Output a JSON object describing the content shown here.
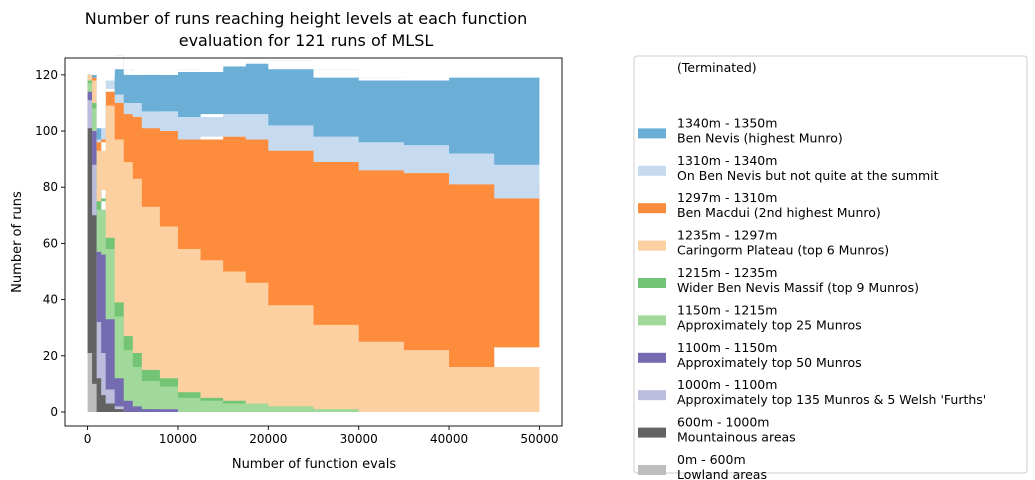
{
  "chart_data": {
    "type": "area",
    "title_lines": [
      "Number of runs reaching height levels at each function",
      "evaluation for 121 runs of MLSL"
    ],
    "xlabel": "Number of function evals",
    "ylabel": "Number of runs",
    "xlim": [
      -2500,
      52500
    ],
    "ylim": [
      -5,
      126
    ],
    "xticks": [
      0,
      10000,
      20000,
      30000,
      40000,
      50000
    ],
    "xtick_labels": [
      "0",
      "10000",
      "20000",
      "30000",
      "40000",
      "50000"
    ],
    "yticks": [
      0,
      20,
      40,
      60,
      80,
      100,
      120
    ],
    "ytick_labels": [
      "0",
      "20",
      "40",
      "60",
      "80",
      "100",
      "120"
    ],
    "grid": false,
    "legend_position": "outside-right",
    "x": [
      0,
      500,
      1000,
      1500,
      2000,
      3000,
      4000,
      5000,
      6000,
      8000,
      10000,
      12500,
      15000,
      17500,
      20000,
      25000,
      30000,
      35000,
      40000,
      45000,
      50000
    ],
    "series": [
      {
        "key": "terminated",
        "name": "(Terminated)",
        "label_lines": [
          "(Terminated)"
        ],
        "color": "#ffffff",
        "values": [
          0,
          0,
          0,
          0,
          0,
          0,
          0,
          0,
          0,
          0,
          0,
          0,
          0,
          0,
          0,
          0,
          0,
          0,
          0,
          0,
          0
        ]
      },
      {
        "key": "s1340",
        "name": "1340m - 1350m",
        "label_lines": [
          "1340m - 1350m",
          "Ben Nevis (highest Munro)"
        ],
        "color": "#6baed6",
        "values": [
          0,
          0,
          2,
          4,
          5,
          7,
          9,
          10,
          11,
          13,
          15,
          16,
          17,
          18,
          19,
          20,
          21,
          22,
          24,
          27,
          31
        ]
      },
      {
        "key": "s1310",
        "name": "1310m - 1340m",
        "label_lines": [
          "1310m - 1340m",
          "On Ben Nevis but not quite at the summit"
        ],
        "color": "#c6dbef",
        "values": [
          0,
          0,
          0,
          1,
          1,
          2,
          3,
          4,
          5,
          6,
          7,
          8,
          8,
          8,
          9,
          9,
          9,
          10,
          10,
          11,
          12
        ]
      },
      {
        "key": "s1297",
        "name": "1297m - 1310m",
        "label_lines": [
          "1297m - 1310m",
          "Ben Macdui (2nd highest Munro)"
        ],
        "color": "#fd8d3c",
        "values": [
          0,
          0,
          1,
          3,
          5,
          9,
          13,
          17,
          22,
          28,
          34,
          39,
          44,
          48,
          51,
          55,
          58,
          61,
          63,
          65,
          53
        ]
      },
      {
        "key": "s1235",
        "name": "1235m - 1297m",
        "label_lines": [
          "1235m - 1297m",
          "Caringorm Plateau (top 6 Munros)"
        ],
        "color": "#fdd0a2",
        "values": [
          0,
          2,
          8,
          18,
          30,
          47,
          58,
          62,
          62,
          58,
          54,
          51,
          49,
          46,
          43,
          36,
          30,
          25,
          22,
          16,
          23
        ]
      },
      {
        "key": "s1215",
        "name": "1215m - 1235m",
        "label_lines": [
          "1215m - 1235m",
          "Wider Ben Nevis Massif (top 9 Munros)"
        ],
        "color": "#74c476",
        "values": [
          0,
          1,
          2,
          3,
          3,
          4,
          5,
          5,
          5,
          4,
          3,
          2,
          1,
          1,
          0,
          0,
          0,
          0,
          0,
          0,
          0
        ]
      },
      {
        "key": "s1150",
        "name": "1150m - 1215m",
        "label_lines": [
          "1150m - 1215m",
          "Approximately top 25 Munros"
        ],
        "color": "#a1d99b",
        "values": [
          0,
          3,
          8,
          15,
          20,
          25,
          22,
          18,
          14,
          10,
          8,
          5,
          4,
          3,
          3,
          2,
          1,
          0,
          0,
          0,
          0
        ]
      },
      {
        "key": "s1100",
        "name": "1100m - 1150m",
        "label_lines": [
          "1100m - 1150m",
          "Approximately top 50 Munros"
        ],
        "color": "#756bb1",
        "values": [
          0,
          3,
          12,
          25,
          35,
          25,
          10,
          4,
          2,
          1,
          1,
          0,
          0,
          0,
          0,
          0,
          0,
          0,
          0,
          0,
          0
        ]
      },
      {
        "key": "s1000",
        "name": "1000m - 1100m",
        "label_lines": [
          "1000m - 1100m",
          "Approximately top 135 Munros & 5 Welsh 'Furths'"
        ],
        "color": "#bcbddc",
        "values": [
          2,
          10,
          18,
          20,
          15,
          5,
          1,
          0,
          0,
          0,
          0,
          0,
          0,
          0,
          0,
          0,
          0,
          0,
          0,
          0,
          0
        ]
      },
      {
        "key": "s600",
        "name": "600m - 1000m",
        "label_lines": [
          "600m - 1000m",
          "Mountainous areas"
        ],
        "color": "#636363",
        "values": [
          30,
          80,
          60,
          12,
          6,
          3,
          1,
          0,
          0,
          0,
          0,
          0,
          0,
          0,
          0,
          0,
          0,
          0,
          0,
          0,
          0
        ]
      },
      {
        "key": "s0",
        "name": "0m - 600m",
        "label_lines": [
          "0m - 600m",
          "Lowland areas"
        ],
        "color": "#bdbdbd",
        "values": [
          88,
          21,
          10,
          0,
          0,
          0,
          0,
          0,
          0,
          0,
          0,
          0,
          0,
          0,
          0,
          0,
          0,
          0,
          0,
          0,
          0
        ]
      }
    ]
  }
}
